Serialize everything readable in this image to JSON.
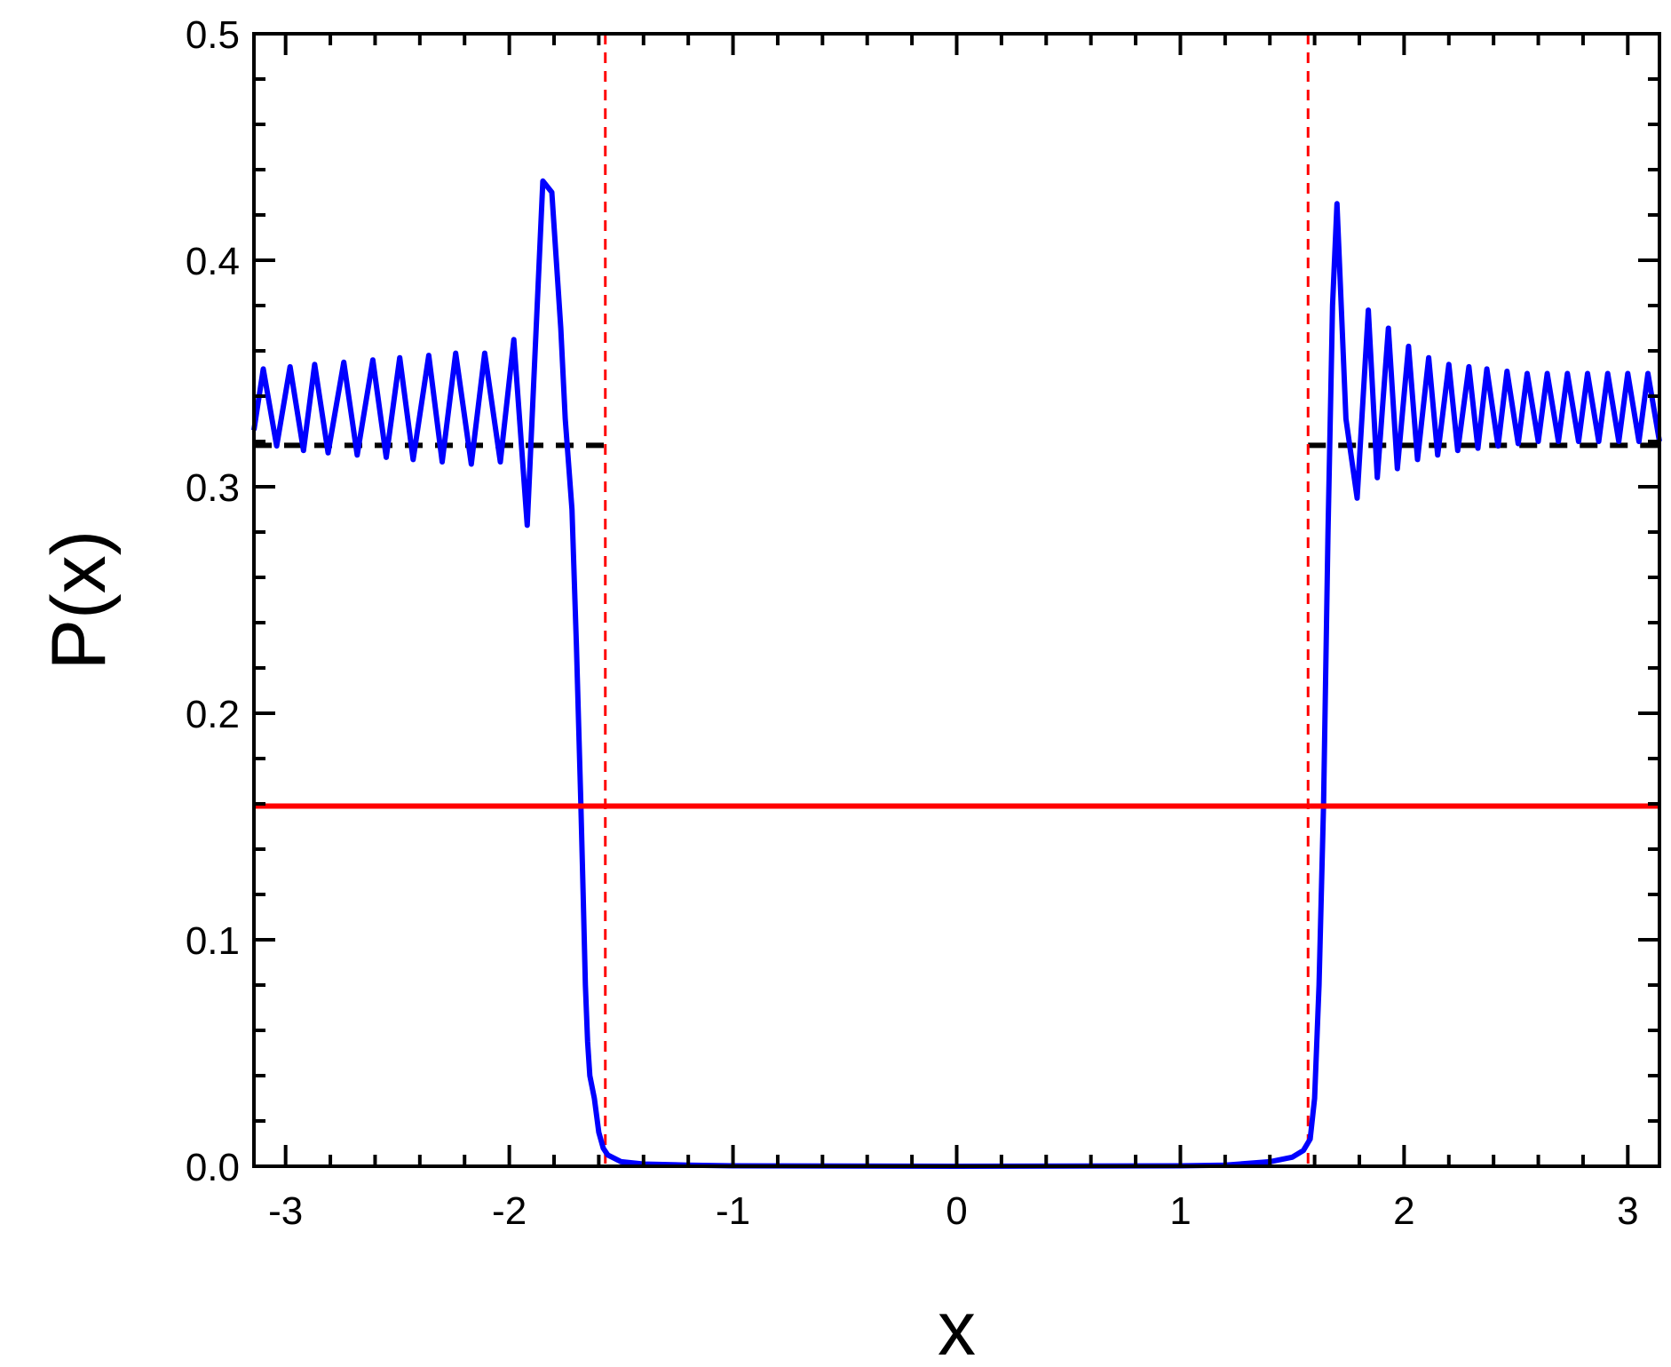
{
  "chart_data": {
    "type": "line",
    "xlabel": "x",
    "ylabel": "P(x)",
    "xlim": [
      -3.1416,
      3.1416
    ],
    "ylim": [
      0,
      0.5
    ],
    "xticks": [
      -3,
      -2,
      -1,
      0,
      1,
      2,
      3
    ],
    "xtick_labels": [
      "-3",
      "-2",
      "-1",
      "0",
      "1",
      "2",
      "3"
    ],
    "yticks": [
      0.0,
      0.1,
      0.2,
      0.3,
      0.4,
      0.5
    ],
    "ytick_labels": [
      "0.0",
      "0.1",
      "0.2",
      "0.3",
      "0.4",
      "0.5"
    ],
    "grid": false,
    "legend": "none",
    "series": [
      {
        "style": "solid",
        "color": "#0000ff",
        "x": [
          -3.1416,
          -3.1,
          -3.04,
          -2.98,
          -2.92,
          -2.87,
          -2.81,
          -2.74,
          -2.68,
          -2.61,
          -2.55,
          -2.49,
          -2.43,
          -2.36,
          -2.3,
          -2.24,
          -2.17,
          -2.11,
          -2.04,
          -1.98,
          -1.92,
          -1.85,
          -1.81,
          -1.77,
          -1.75,
          -1.72,
          -1.7,
          -1.68,
          -1.67,
          -1.66,
          -1.65,
          -1.64,
          -1.62,
          -1.6,
          -1.58,
          -1.56,
          -1.5,
          -1.4,
          -1.2,
          -1.0,
          0.0,
          1.0,
          1.2,
          1.4,
          1.5,
          1.55,
          1.58,
          1.6,
          1.62,
          1.64,
          1.66,
          1.68,
          1.7,
          1.74,
          1.79,
          1.84,
          1.88,
          1.93,
          1.97,
          2.02,
          2.06,
          2.11,
          2.15,
          2.2,
          2.24,
          2.29,
          2.33,
          2.37,
          2.42,
          2.46,
          2.51,
          2.55,
          2.6,
          2.64,
          2.69,
          2.73,
          2.78,
          2.82,
          2.87,
          2.91,
          2.96,
          3.0,
          3.05,
          3.09,
          3.1416
        ],
        "y": [
          0.325,
          0.352,
          0.318,
          0.353,
          0.316,
          0.354,
          0.315,
          0.355,
          0.314,
          0.356,
          0.313,
          0.357,
          0.312,
          0.358,
          0.311,
          0.359,
          0.31,
          0.359,
          0.311,
          0.365,
          0.283,
          0.435,
          0.43,
          0.37,
          0.33,
          0.29,
          0.23,
          0.16,
          0.12,
          0.08,
          0.055,
          0.04,
          0.03,
          0.015,
          0.008,
          0.005,
          0.002,
          0.001,
          0.0005,
          0.0002,
          0.0,
          0.0002,
          0.0005,
          0.002,
          0.004,
          0.007,
          0.012,
          0.03,
          0.08,
          0.16,
          0.28,
          0.38,
          0.425,
          0.33,
          0.295,
          0.378,
          0.304,
          0.37,
          0.308,
          0.362,
          0.312,
          0.357,
          0.314,
          0.354,
          0.316,
          0.353,
          0.317,
          0.352,
          0.318,
          0.351,
          0.319,
          0.35,
          0.32,
          0.35,
          0.32,
          0.35,
          0.32,
          0.35,
          0.32,
          0.35,
          0.32,
          0.35,
          0.32,
          0.35,
          0.32
        ]
      },
      {
        "style": "dashed",
        "color": "#000000",
        "segments": [
          {
            "x": [
              -3.1416,
              -1.5708
            ],
            "y": [
              0.3183,
              0.3183
            ]
          },
          {
            "x": [
              1.5708,
              3.1416
            ],
            "y": [
              0.3183,
              0.3183
            ]
          }
        ]
      },
      {
        "style": "solid",
        "color": "#ff0000",
        "x": [
          -3.1416,
          3.1416
        ],
        "y": [
          0.159,
          0.159
        ]
      },
      {
        "style": "dashed-vertical",
        "color": "#ff0000",
        "x_values": [
          -1.5708,
          1.5708
        ]
      }
    ]
  }
}
